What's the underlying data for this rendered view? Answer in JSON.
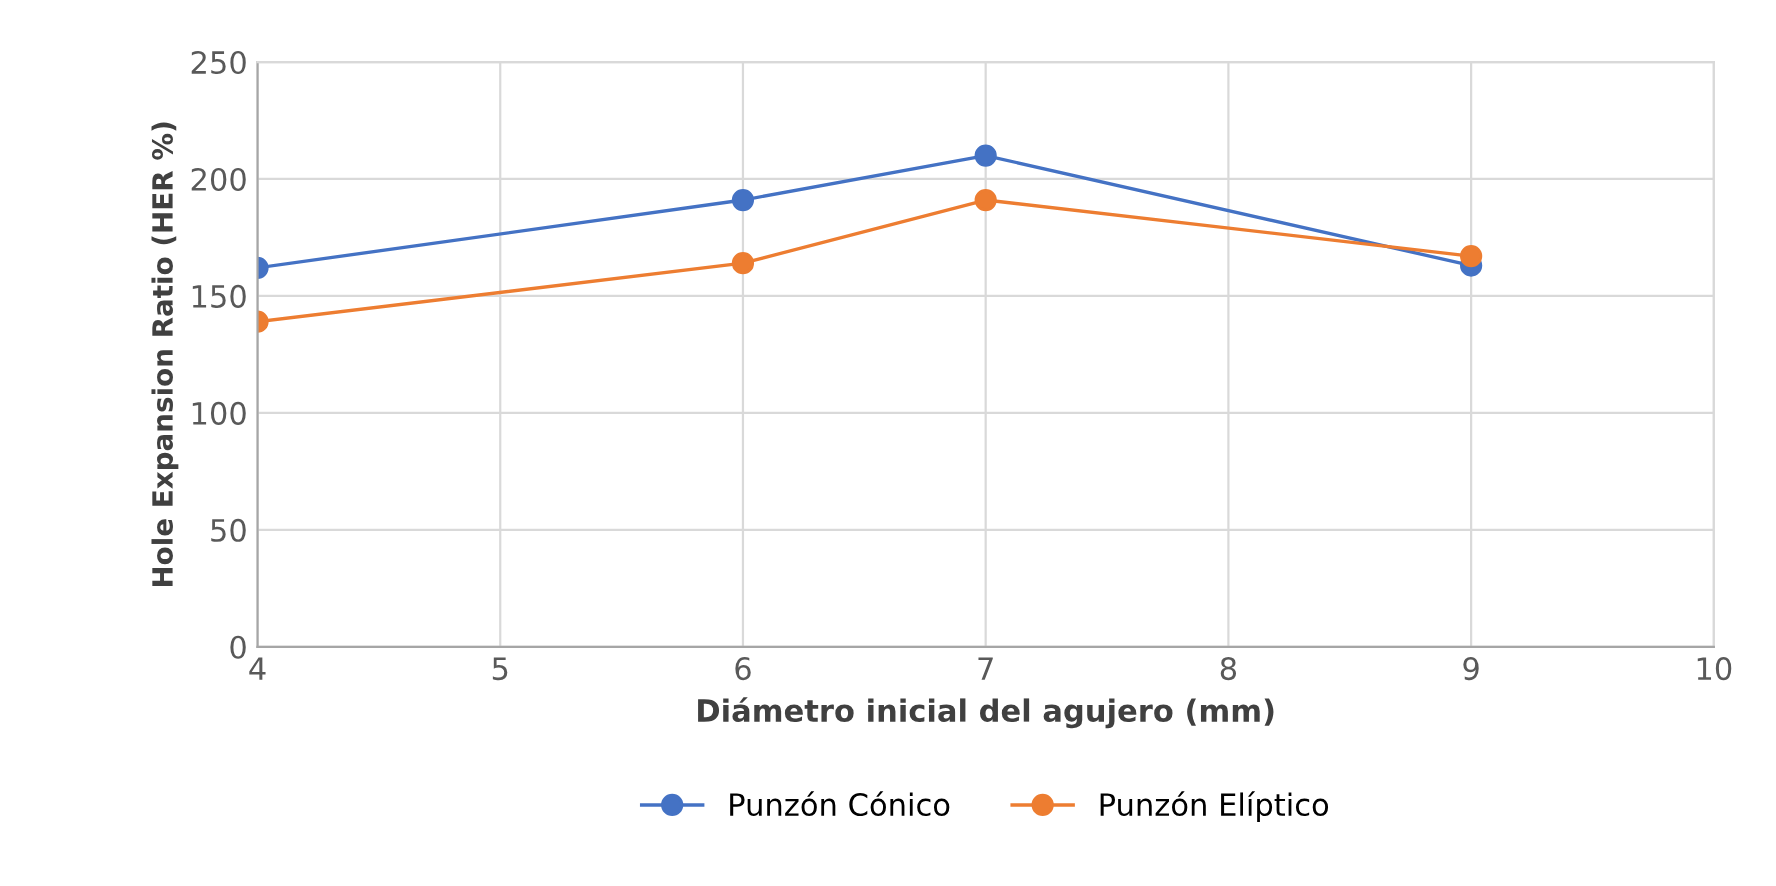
{
  "chart_data": {
    "type": "line",
    "xlabel": "Diámetro inicial del agujero (mm)",
    "ylabel": "Hole Expansion Ratio (HER %)",
    "x": [
      4,
      6,
      7,
      9
    ],
    "series": [
      {
        "name": "Punzón Cónico",
        "color": "#4472c4",
        "values": [
          162,
          191,
          210,
          163
        ]
      },
      {
        "name": "Punzón Elíptico",
        "color": "#ed7d31",
        "values": [
          139,
          164,
          191,
          167
        ]
      }
    ],
    "xlim": [
      4,
      10
    ],
    "xticks": [
      4,
      5,
      6,
      7,
      8,
      9,
      10
    ],
    "ylim": [
      0,
      250
    ],
    "yticks": [
      0,
      50,
      100,
      150,
      200,
      250
    ],
    "grid": true,
    "legend": "bottom",
    "marker": "circle",
    "line_style": "solid"
  }
}
